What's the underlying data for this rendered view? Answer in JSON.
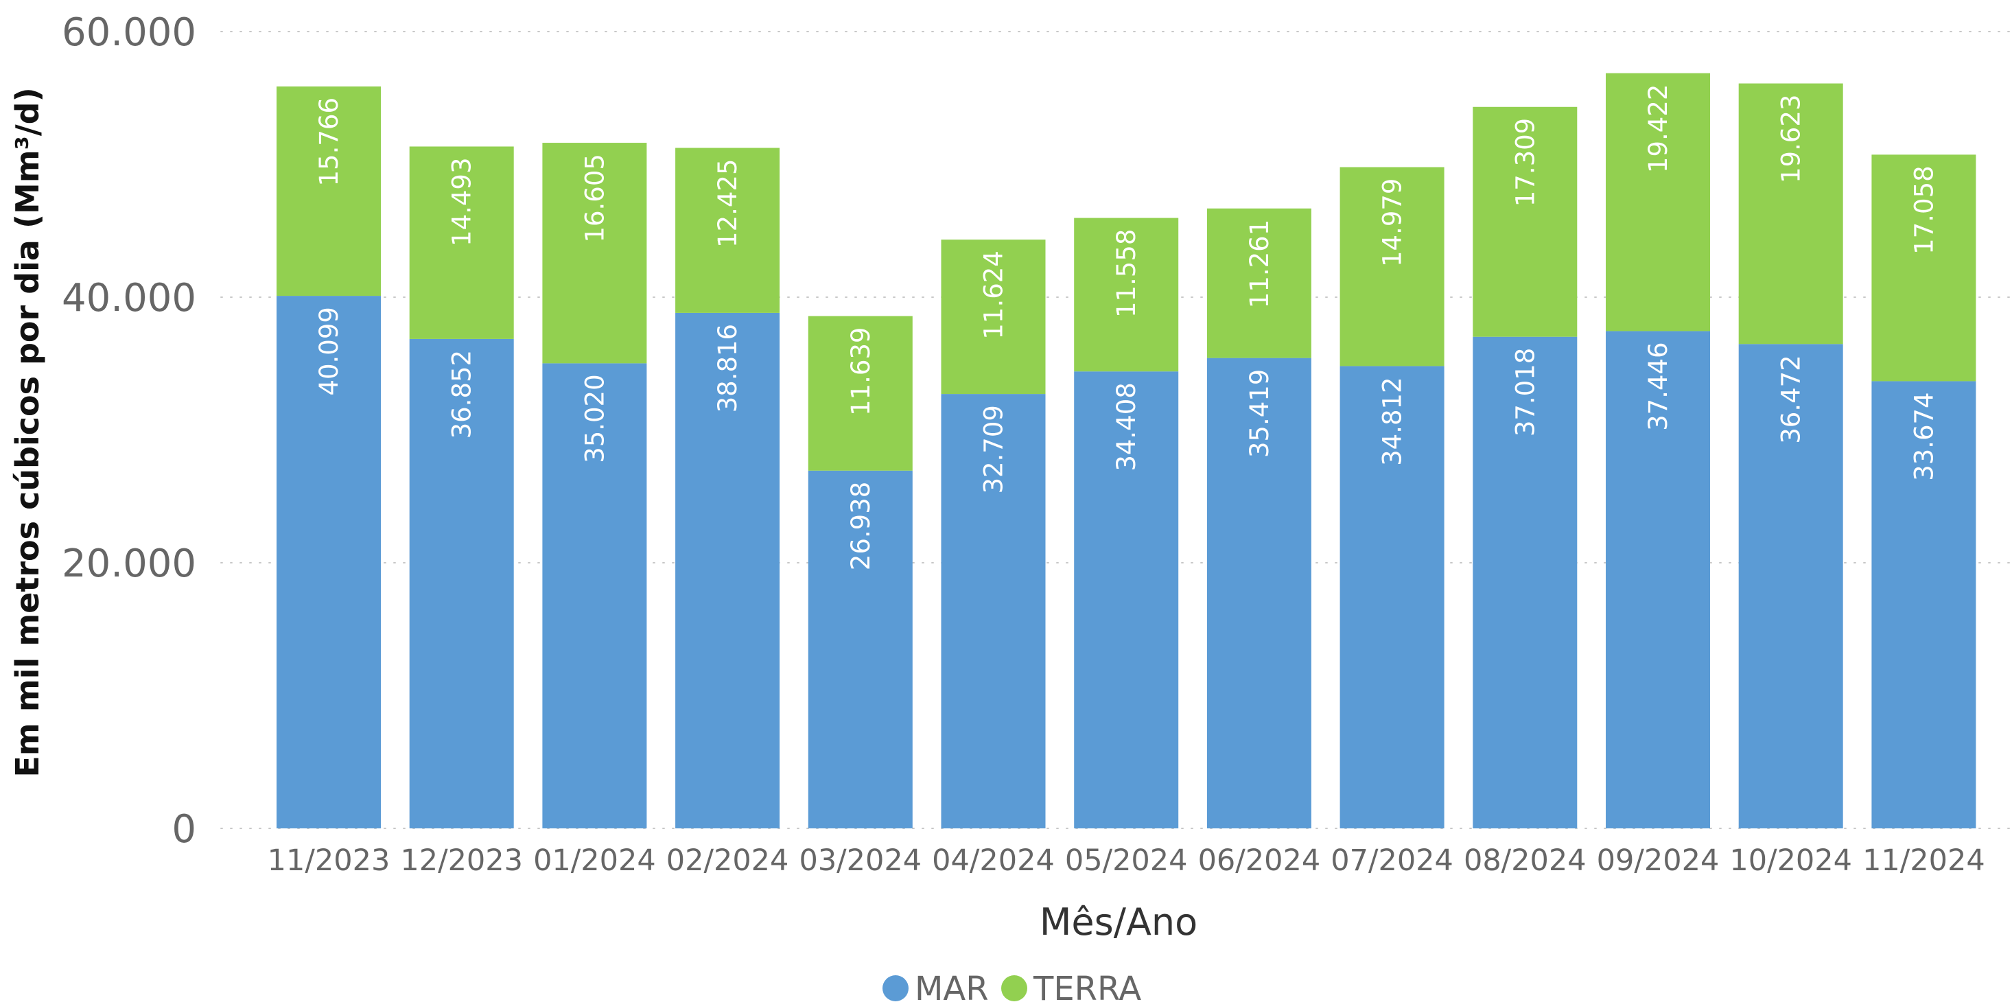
{
  "chart_data": {
    "type": "bar",
    "stacked": true,
    "title": "",
    "xlabel": "Mês/Ano",
    "ylabel": "Em mil metros cúbicos por dia (Mm³/d)",
    "ylim": [
      0,
      60000
    ],
    "y_ticks": [
      {
        "value": 0,
        "label": "0"
      },
      {
        "value": 20000,
        "label": "20.000"
      },
      {
        "value": 40000,
        "label": "40.000"
      },
      {
        "value": 60000,
        "label": "60.000"
      }
    ],
    "grid": true,
    "legend_position": "bottom",
    "categories": [
      "11/2023",
      "12/2023",
      "01/2024",
      "02/2024",
      "03/2024",
      "04/2024",
      "05/2024",
      "06/2024",
      "07/2024",
      "08/2024",
      "09/2024",
      "10/2024",
      "11/2024"
    ],
    "series": [
      {
        "name": "MAR",
        "color": "#5b9bd5",
        "values": [
          40099,
          36852,
          35020,
          38816,
          26938,
          32709,
          34408,
          35419,
          34812,
          37018,
          37446,
          36472,
          33674
        ],
        "labels": [
          "40.099",
          "36.852",
          "35.020",
          "38.816",
          "26.938",
          "32.709",
          "34.408",
          "35.419",
          "34.812",
          "37.018",
          "37.446",
          "36.472",
          "33.674"
        ]
      },
      {
        "name": "TERRA",
        "color": "#92d050",
        "values": [
          15766,
          14493,
          16605,
          12425,
          11639,
          11624,
          11558,
          11261,
          14979,
          17309,
          19422,
          19623,
          17058
        ],
        "labels": [
          "15.766",
          "14.493",
          "16.605",
          "12.425",
          "11.639",
          "11.624",
          "11.558",
          "11.261",
          "14.979",
          "17.309",
          "19.422",
          "19.623",
          "17.058"
        ]
      }
    ]
  }
}
